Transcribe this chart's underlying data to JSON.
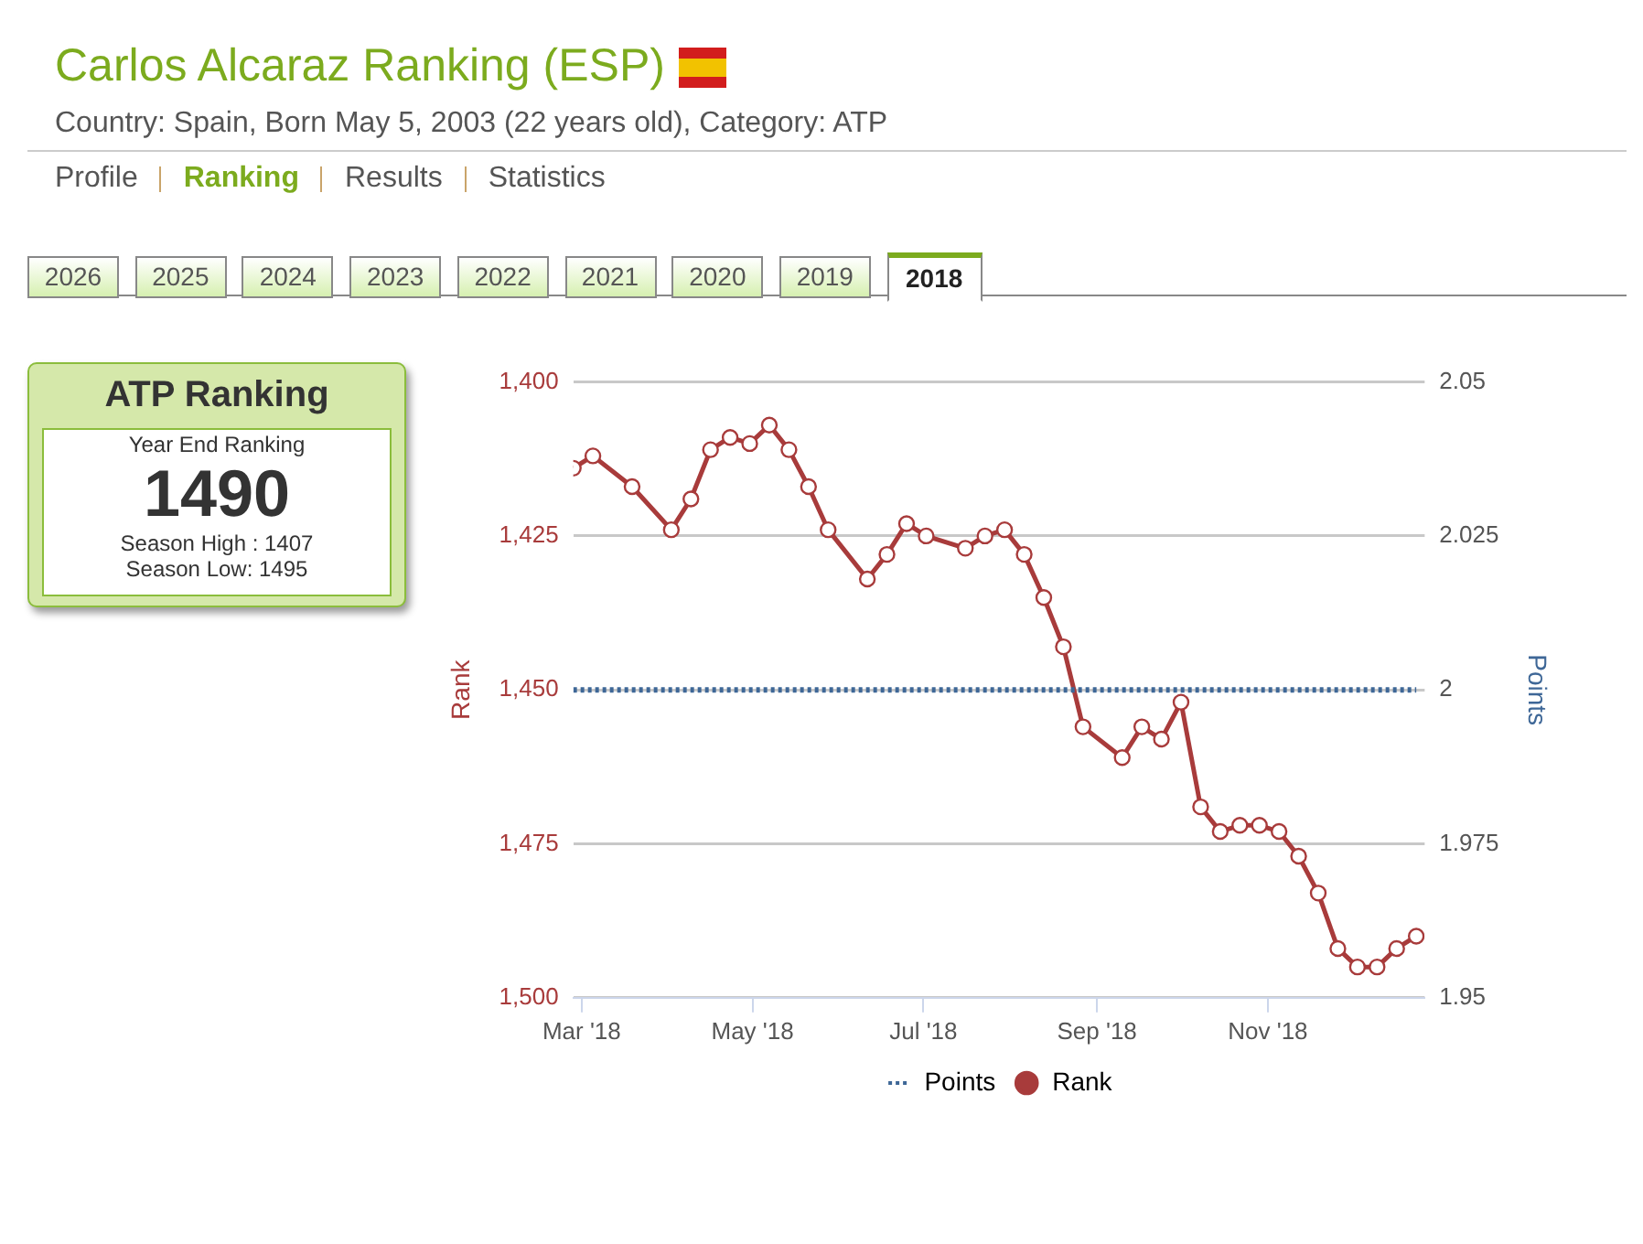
{
  "chart_data": [
    {
      "type": "line",
      "title": "Carlos Alcaraz Ranking (ESP)",
      "subtitle": "Country: Spain, Born May 5, 2003 (22 years old), Category: ATP",
      "annotations": [
        "Profile",
        "Ranking",
        "Results",
        "Statistics",
        "2026",
        "2025",
        "2024",
        "2023",
        "2022",
        "2021",
        "2020",
        "2019",
        "2018"
      ],
      "xlim": [
        "2018-02-26",
        "2018-12-27"
      ],
      "xticks": [
        {
          "value": "2018-03-01",
          "label": "Mar '18"
        },
        {
          "value": "2018-05-01",
          "label": "May '18"
        },
        {
          "value": "2018-07-01",
          "label": "Jul '18"
        },
        {
          "value": "2018-09-01",
          "label": "Sep '18"
        },
        {
          "value": "2018-11-01",
          "label": "Nov '18"
        }
      ],
      "ylabel": "Rank",
      "y2label": "Points",
      "ylim": [
        1500,
        1400
      ],
      "yticks": [
        {
          "value": 1400,
          "label": "1,400"
        },
        {
          "value": 1425,
          "label": "1,425"
        },
        {
          "value": 1450,
          "label": "1,450"
        },
        {
          "value": 1475,
          "label": "1,475"
        },
        {
          "value": 1500,
          "label": "1,500"
        }
      ],
      "y2lim": [
        1.95,
        2.05
      ],
      "y2ticks": [
        1.95,
        1.975,
        2,
        2.025,
        2.05
      ],
      "grid": "y",
      "legend": "bottom",
      "series": [
        {
          "name": "Points",
          "color": "#3e6797",
          "axis": "y2",
          "marker": "none",
          "line_style": "dotted",
          "x": [
            "2018-02-26",
            "2018-12-24"
          ],
          "values": [
            2,
            2
          ]
        },
        {
          "name": "Rank",
          "color": "#a83b3b",
          "marker": "circle",
          "line_style": "solid",
          "x": [
            "2018-02-26",
            "2018-03-05",
            "2018-03-19",
            "2018-04-02",
            "2018-04-09",
            "2018-04-16",
            "2018-04-23",
            "2018-04-30",
            "2018-05-07",
            "2018-05-14",
            "2018-05-21",
            "2018-05-28",
            "2018-06-11",
            "2018-06-18",
            "2018-06-25",
            "2018-07-02",
            "2018-07-16",
            "2018-07-23",
            "2018-07-30",
            "2018-08-06",
            "2018-08-13",
            "2018-08-20",
            "2018-08-27",
            "2018-09-10",
            "2018-09-17",
            "2018-09-24",
            "2018-10-01",
            "2018-10-08",
            "2018-10-15",
            "2018-10-22",
            "2018-10-29",
            "2018-11-05",
            "2018-11-12",
            "2018-11-19",
            "2018-11-26",
            "2018-12-03",
            "2018-12-10",
            "2018-12-17",
            "2018-12-24"
          ],
          "values": [
            1414,
            1412,
            1417,
            1424,
            1419,
            1411,
            1409,
            1410,
            1407,
            1411,
            1417,
            1424,
            1432,
            1428,
            1423,
            1425,
            1427,
            1425,
            1424,
            1428,
            1435,
            1443,
            1456,
            1461,
            1456,
            1458,
            1452,
            1469,
            1473,
            1472,
            1472,
            1473,
            1477,
            1483,
            1492,
            1495,
            1495,
            1492,
            1490
          ]
        }
      ]
    },
    {
      "type": "other",
      "title": "ATP Ranking",
      "annotations": [
        "Year End Ranking",
        "1490",
        "Season High : 1407",
        "Season Low: 1495"
      ]
    }
  ]
}
